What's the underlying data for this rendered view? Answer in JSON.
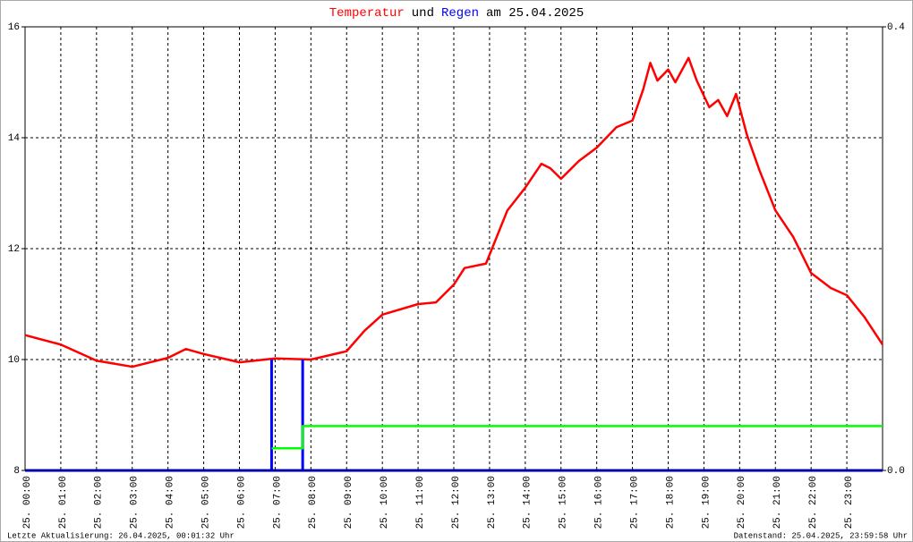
{
  "chart_data": {
    "type": "line",
    "title": [
      {
        "text": "Temperatur",
        "color": "#ff0000"
      },
      {
        "text": "und",
        "color": "#000000"
      },
      {
        "text": "Regen",
        "color": "#0000ff"
      },
      {
        "text": "am 25.04.2025",
        "color": "#000000"
      }
    ],
    "footer_left": "Letzte Aktualisierung: 26.04.2025, 00:01:32 Uhr",
    "footer_right": "Datenstand: 25.04.2025, 23:59:58 Uhr",
    "xlim": [
      0,
      24
    ],
    "xticks": [
      {
        "value": 0,
        "label": "25. 00:00"
      },
      {
        "value": 1,
        "label": "25. 01:00"
      },
      {
        "value": 2,
        "label": "25. 02:00"
      },
      {
        "value": 3,
        "label": "25. 03:00"
      },
      {
        "value": 4,
        "label": "25. 04:00"
      },
      {
        "value": 5,
        "label": "25. 05:00"
      },
      {
        "value": 6,
        "label": "25. 06:00"
      },
      {
        "value": 7,
        "label": "25. 07:00"
      },
      {
        "value": 8,
        "label": "25. 08:00"
      },
      {
        "value": 9,
        "label": "25. 09:00"
      },
      {
        "value": 10,
        "label": "25. 10:00"
      },
      {
        "value": 11,
        "label": "25. 11:00"
      },
      {
        "value": 12,
        "label": "25. 12:00"
      },
      {
        "value": 13,
        "label": "25. 13:00"
      },
      {
        "value": 14,
        "label": "25. 14:00"
      },
      {
        "value": 15,
        "label": "25. 15:00"
      },
      {
        "value": 16,
        "label": "25. 16:00"
      },
      {
        "value": 17,
        "label": "25. 17:00"
      },
      {
        "value": 18,
        "label": "25. 18:00"
      },
      {
        "value": 19,
        "label": "25. 19:00"
      },
      {
        "value": 20,
        "label": "25. 20:00"
      },
      {
        "value": 21,
        "label": "25. 21:00"
      },
      {
        "value": 22,
        "label": "25. 22:00"
      },
      {
        "value": 23,
        "label": "25. 23:00"
      }
    ],
    "ylim": [
      8,
      16
    ],
    "yticks": [
      8,
      10,
      12,
      14,
      16
    ],
    "y2lim": [
      0,
      0.4
    ],
    "y2ticks": [
      {
        "value": 0,
        "label": "0.0"
      },
      0.4
    ],
    "grid": true,
    "series": [
      {
        "name": "Temperatur",
        "color": "#ff0000",
        "axis": "y",
        "style": "line",
        "x": [
          0,
          1,
          2,
          3,
          4,
          4.5,
          5,
          6,
          7,
          8,
          9,
          9.5,
          10,
          11,
          11.5,
          12,
          12.3,
          12.9,
          13.5,
          14,
          14.45,
          14.7,
          15,
          15.5,
          16,
          16.55,
          17,
          17.3,
          17.5,
          17.7,
          18,
          18.2,
          18.57,
          18.8,
          19.15,
          19.4,
          19.65,
          19.9,
          20.2,
          20.55,
          21,
          21.5,
          22,
          22.55,
          23,
          23.5,
          24
        ],
        "values": [
          10.44,
          10.27,
          9.98,
          9.87,
          10.03,
          10.19,
          10.1,
          9.95,
          10.02,
          10.0,
          10.15,
          10.52,
          10.81,
          11.0,
          11.03,
          11.35,
          11.65,
          11.73,
          12.69,
          13.1,
          13.53,
          13.45,
          13.26,
          13.58,
          13.82,
          14.19,
          14.31,
          14.87,
          15.35,
          15.03,
          15.23,
          15.0,
          15.44,
          15.03,
          14.55,
          14.68,
          14.39,
          14.79,
          14.06,
          13.42,
          12.69,
          12.21,
          11.56,
          11.29,
          11.16,
          10.76,
          10.27
        ]
      },
      {
        "name": "Regen",
        "color": "#0000ff",
        "axis": "y2",
        "style": "bars",
        "x": [
          6.9,
          7.77
        ],
        "values": [
          0.1,
          0.1
        ]
      },
      {
        "color": "#00ff00",
        "axis": "y2",
        "style": "line",
        "x": [
          6.9,
          7.77,
          7.77,
          24
        ],
        "values": [
          0.02,
          0.02,
          0.04,
          0.04
        ]
      }
    ]
  }
}
